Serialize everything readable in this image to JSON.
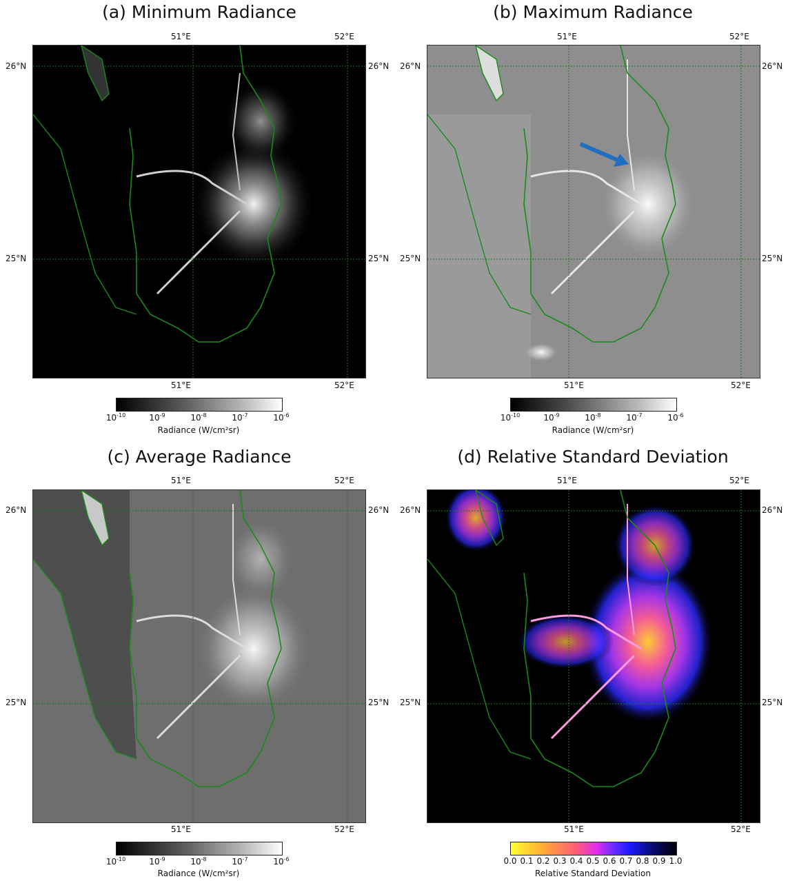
{
  "panels": [
    {
      "title": "(a) Minimum Radiance",
      "lon_ticks": [
        "51°E",
        "52°E"
      ],
      "lat_ticks": [
        "26°N",
        "25°N"
      ],
      "colorbar": {
        "ticks": [
          "10",
          "10",
          "10",
          "10",
          "10"
        ],
        "exponents": [
          "-10",
          "-9",
          "-8",
          "-7",
          "-6"
        ],
        "label": "Radiance (W/cm²sr)"
      },
      "background": "#000000"
    },
    {
      "title": "(b) Maximum Radiance",
      "lon_ticks": [
        "51°E",
        "52°E"
      ],
      "lat_ticks": [
        "26°N",
        "25°N"
      ],
      "colorbar": {
        "ticks": [
          "10",
          "10",
          "10",
          "10",
          "10"
        ],
        "exponents": [
          "-10",
          "-9",
          "-8",
          "-7",
          "-6"
        ],
        "label": "Radiance (W/cm²sr)"
      },
      "background": "#8e8e8e"
    },
    {
      "title": "(c) Average Radiance",
      "lon_ticks": [
        "51°E",
        "52°E"
      ],
      "lat_ticks": [
        "26°N",
        "25°N"
      ],
      "colorbar": {
        "ticks": [
          "10",
          "10",
          "10",
          "10",
          "10"
        ],
        "exponents": [
          "-10",
          "-9",
          "-8",
          "-7",
          "-6"
        ],
        "label": "Radiance (W/cm²sr)"
      },
      "background": "#6e6e6e"
    },
    {
      "title": "(d) Relative Standard Deviation",
      "lon_ticks": [
        "51°E",
        "52°E"
      ],
      "lat_ticks": [
        "26°N",
        "25°N"
      ],
      "colorbar": {
        "ticks": [
          "0.0",
          "0.1",
          "0.2",
          "0.3",
          "0.4",
          "0.5",
          "0.6",
          "0.7",
          "0.8",
          "0.9",
          "1.0"
        ],
        "label": "Relative Standard Deviation"
      },
      "background": "#000000"
    }
  ],
  "colors": {
    "coastline": "#1a8a1a",
    "gridline": "#1a7a1a",
    "arrow": "#1f6fc0"
  }
}
